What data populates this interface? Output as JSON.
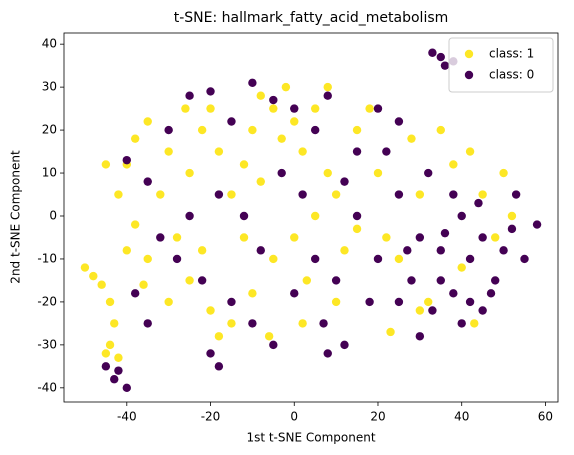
{
  "chart_data": {
    "type": "scatter",
    "title": "t-SNE: hallmark_fatty_acid_metabolism",
    "xlabel": "1st t-SNE Component",
    "ylabel": "2nd t-SNE Component",
    "xlim": [
      -55,
      63
    ],
    "ylim": [
      -43.3,
      42.6
    ],
    "xticks": [
      -40,
      -20,
      0,
      20,
      40,
      60
    ],
    "yticks": [
      -40,
      -30,
      -20,
      -10,
      0,
      10,
      20,
      30,
      40
    ],
    "legend": "upper right",
    "series": [
      {
        "name": "class: 1",
        "color": "#fde725",
        "x": [
          -50,
          -48,
          -46,
          -44,
          -43,
          -44,
          -42,
          -45,
          -40,
          -42,
          -40,
          -38,
          -35,
          -30,
          -32,
          -28,
          -25,
          -22,
          -20,
          -18,
          -15,
          -12,
          -10,
          -8,
          -5,
          -2,
          0,
          2,
          5,
          8,
          -25,
          -20,
          -18,
          -10,
          -5,
          0,
          3,
          -30,
          -35,
          -38,
          10,
          12,
          15,
          18,
          20,
          22,
          25,
          28,
          30,
          32,
          35,
          38,
          40,
          42,
          45,
          48,
          50,
          52,
          23,
          30,
          -15,
          -22,
          -8,
          5,
          10,
          -45,
          -36,
          -26,
          15,
          -12,
          2,
          -3,
          43,
          -6,
          8
        ],
        "values": [
          -12,
          -14,
          -16,
          -20,
          -25,
          -30,
          -33,
          -32,
          -8,
          5,
          12,
          18,
          22,
          15,
          5,
          -5,
          10,
          20,
          25,
          15,
          5,
          -5,
          20,
          28,
          25,
          30,
          22,
          15,
          25,
          30,
          -15,
          -22,
          -28,
          -18,
          -10,
          -5,
          -15,
          -20,
          -10,
          -2,
          5,
          -8,
          20,
          25,
          10,
          -5,
          -10,
          18,
          5,
          -20,
          20,
          12,
          -12,
          15,
          5,
          -5,
          10,
          0,
          -27,
          -22,
          -25,
          -8,
          8,
          0,
          -20,
          12,
          -16,
          25,
          -3,
          12,
          -25,
          18,
          -25,
          -28,
          10
        ]
      },
      {
        "name": "class: 0",
        "color": "#440154",
        "x": [
          35,
          33,
          36,
          38,
          -43,
          -42,
          -40,
          -45,
          -40,
          -35,
          -30,
          -25,
          -20,
          -15,
          -10,
          -5,
          0,
          5,
          8,
          -28,
          -22,
          -20,
          -15,
          -10,
          -5,
          0,
          5,
          8,
          10,
          -12,
          -18,
          -25,
          -32,
          -38,
          15,
          18,
          20,
          22,
          25,
          28,
          30,
          32,
          35,
          38,
          40,
          42,
          45,
          48,
          50,
          52,
          55,
          58,
          45,
          40,
          35,
          30,
          25,
          12,
          2,
          -8,
          -3,
          15,
          20,
          25,
          38,
          44,
          47,
          53,
          33,
          -35,
          -18,
          7,
          12,
          27,
          36,
          42
        ],
        "values": [
          37,
          38,
          35,
          36,
          -38,
          -36,
          -40,
          -35,
          13,
          8,
          20,
          28,
          29,
          22,
          31,
          27,
          25,
          20,
          28,
          -10,
          -15,
          -32,
          -20,
          -25,
          -30,
          -18,
          -10,
          -32,
          -15,
          0,
          5,
          0,
          -5,
          -18,
          0,
          -20,
          -10,
          15,
          5,
          -15,
          -5,
          10,
          -8,
          -18,
          0,
          -10,
          -5,
          -15,
          -8,
          -3,
          -10,
          -2,
          -22,
          -25,
          -15,
          -28,
          -20,
          8,
          5,
          -8,
          10,
          15,
          25,
          22,
          5,
          3,
          -18,
          5,
          -22,
          -25,
          -35,
          -25,
          -30,
          -8,
          -4,
          -20
        ]
      }
    ]
  }
}
